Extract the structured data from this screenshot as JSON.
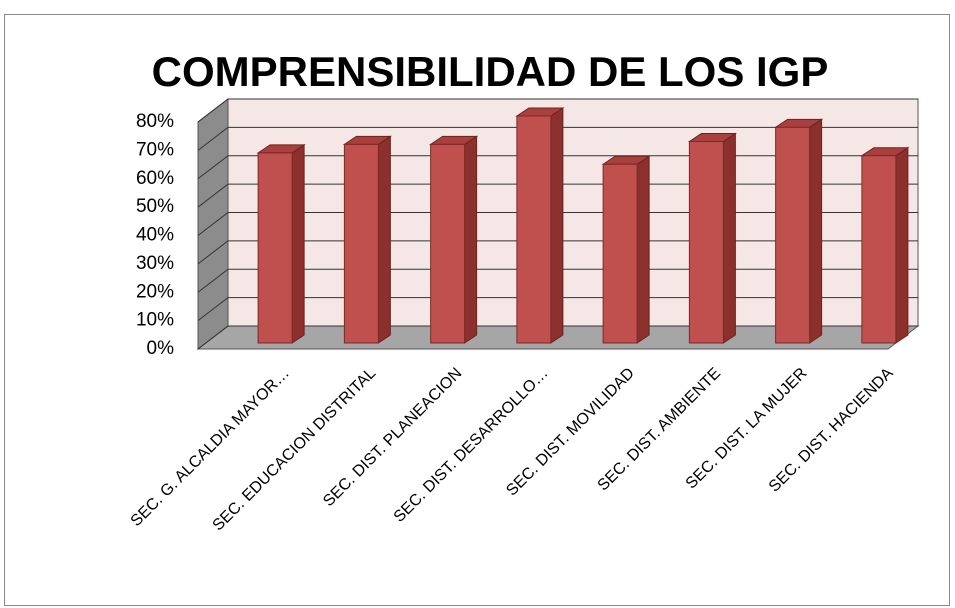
{
  "chart_data": {
    "type": "bar3d",
    "title": "COMPRENSIBILIDAD DE LOS IGP",
    "categories": [
      "SEC. G. ALCALDIA MAYOR…",
      "SEC. EDUCACION DISTRITAL",
      "SEC. DIST. PLANEACION",
      "SEC. DIST. DESARROLLO…",
      "SEC. DIST. MOVILIDAD",
      "SEC. DIST. AMBIENTE",
      "SEC. DIST. LA MUJER",
      "SEC. DIST. HACIENDA"
    ],
    "values": [
      67,
      70,
      70,
      80,
      63,
      71,
      76,
      66
    ],
    "color": "#c0504d",
    "ylim": [
      0,
      80
    ],
    "yticks": [
      {
        "value": 0,
        "label": "0%"
      },
      {
        "value": 10,
        "label": "10%"
      },
      {
        "value": 20,
        "label": "20%"
      },
      {
        "value": 30,
        "label": "30%"
      },
      {
        "value": 40,
        "label": "40%"
      },
      {
        "value": 50,
        "label": "50%"
      },
      {
        "value": 60,
        "label": "60%"
      },
      {
        "value": 70,
        "label": "70%"
      },
      {
        "value": 80,
        "label": "80%"
      }
    ],
    "grid": true
  }
}
